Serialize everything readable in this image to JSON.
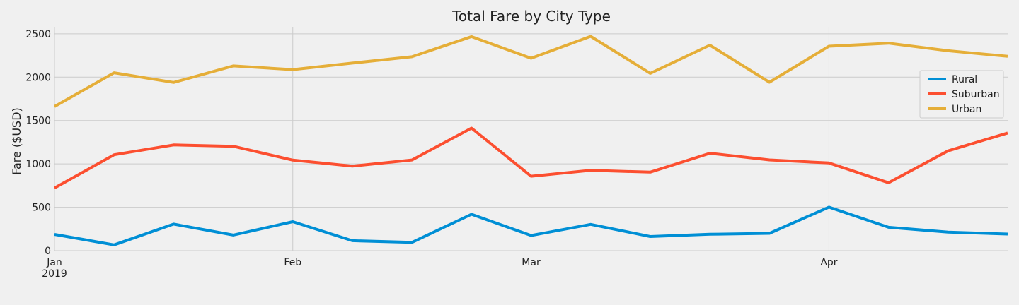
{
  "chart_data": {
    "type": "line",
    "title": "Total Fare by City Type",
    "xlabel": "",
    "ylabel": "Fare ($USD)",
    "ylim": [
      0,
      2580
    ],
    "xlim": [
      "2019-01-06",
      "2019-04-28"
    ],
    "yticks": [
      0,
      500,
      1000,
      1500,
      2000,
      2500
    ],
    "xticks": [
      {
        "date": "2019-01-06",
        "label": "Jan",
        "sublabel": "2019"
      },
      {
        "date": "2019-02-03",
        "label": "Feb",
        "sublabel": ""
      },
      {
        "date": "2019-03-03",
        "label": "Mar",
        "sublabel": ""
      },
      {
        "date": "2019-04-07",
        "label": "Apr",
        "sublabel": ""
      }
    ],
    "grid": true,
    "legend_position": "right",
    "x": [
      "2019-01-06",
      "2019-01-13",
      "2019-01-20",
      "2019-01-27",
      "2019-02-03",
      "2019-02-10",
      "2019-02-17",
      "2019-02-24",
      "2019-03-03",
      "2019-03-10",
      "2019-03-17",
      "2019-03-24",
      "2019-03-31",
      "2019-04-07",
      "2019-04-14",
      "2019-04-21",
      "2019-04-28"
    ],
    "series": [
      {
        "name": "Rural",
        "color": "#008fd5",
        "values": [
          187,
          67,
          306,
          180,
          334,
          115,
          95,
          419,
          175,
          303,
          163,
          189,
          199,
          501,
          269,
          214,
          191
        ]
      },
      {
        "name": "Suburban",
        "color": "#fc4f30",
        "values": [
          722,
          1105,
          1218,
          1203,
          1043,
          974,
          1045,
          1412,
          858,
          925,
          905,
          1122,
          1046,
          1011,
          783,
          1150,
          1356
        ]
      },
      {
        "name": "Urban",
        "color": "#e5ae38",
        "values": [
          1661,
          2050,
          1939,
          2129,
          2087,
          2162,
          2235,
          2467,
          2218,
          2470,
          2044,
          2368,
          1941,
          2356,
          2391,
          2304,
          2240
        ]
      }
    ]
  }
}
